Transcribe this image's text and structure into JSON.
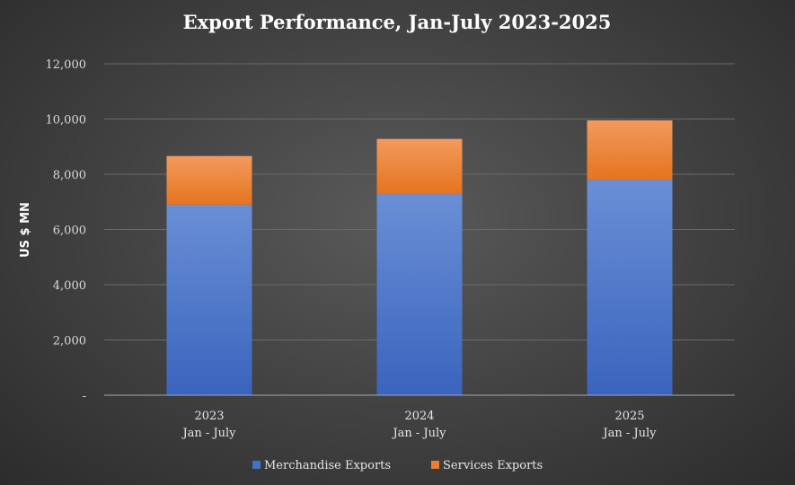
{
  "chart_data": {
    "type": "bar",
    "stacked": true,
    "title": "Export Performance, Jan-July 2023-2025",
    "ylabel": "US $ MN",
    "xlabel": "",
    "ylim": [
      0,
      12000
    ],
    "yticks": [
      0,
      2000,
      4000,
      6000,
      8000,
      10000,
      12000
    ],
    "ytick_labels": [
      "-",
      "2,000",
      "4,000",
      "6,000",
      "8,000",
      "10,000",
      "12,000"
    ],
    "categories": [
      {
        "year": "2023",
        "period": "Jan - July"
      },
      {
        "year": "2024",
        "period": "Jan - July"
      },
      {
        "year": "2025",
        "period": "Jan - July"
      }
    ],
    "series": [
      {
        "name": "Merchandise Exports",
        "color": "#4472c4",
        "values": [
          6900,
          7280,
          7800
        ]
      },
      {
        "name": "Services Exports",
        "color": "#ed7d31",
        "values": [
          1760,
          2000,
          2150
        ]
      }
    ],
    "legend_position": "bottom",
    "grid": true
  }
}
